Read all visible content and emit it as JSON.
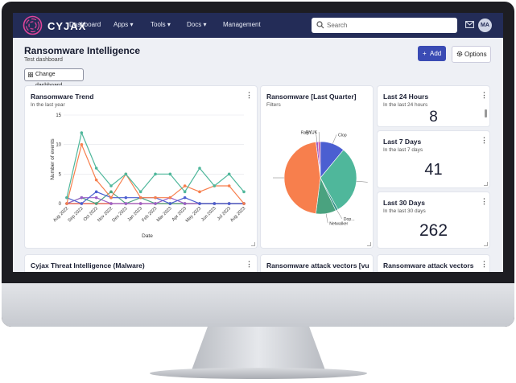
{
  "nav": {
    "brand": "CYJAX",
    "items": [
      {
        "label": "Dashboard"
      },
      {
        "label": "Apps ▾"
      },
      {
        "label": "Tools ▾"
      },
      {
        "label": "Docs ▾"
      },
      {
        "label": "Management"
      }
    ],
    "search_placeholder": "Search",
    "avatar_initials": "MA"
  },
  "page": {
    "title": "Ransomware Intelligence",
    "subtitle": "Test dashboard",
    "change_dashboard_label": "Change dashboard",
    "add_label": "Add",
    "options_label": "Options"
  },
  "cards": {
    "trend": {
      "title": "Ransomware Trend",
      "subtitle": "In the last year"
    },
    "quarter": {
      "title": "Ransomware [Last Quarter]",
      "subtitle": "Filters"
    },
    "h24": {
      "title": "Last 24 Hours",
      "subtitle": "In the last 24 hours",
      "value": "8"
    },
    "d7": {
      "title": "Last 7 Days",
      "subtitle": "In the last 7 days",
      "value": "41"
    },
    "d30": {
      "title": "Last 30 Days",
      "subtitle": "In the last 30 days",
      "value": "262"
    },
    "malware": {
      "title": "Cyjax Threat Intelligence (Malware)"
    },
    "vectors1": {
      "title": "Ransomware attack vectors [vu"
    },
    "vectors2": {
      "title": "Ransomware attack vectors"
    }
  },
  "colors": {
    "nav": "#232c57",
    "accent": "#3a4bb4",
    "teal": "#4fb79b",
    "orange": "#f77f4d",
    "blue": "#4b5fd1",
    "green": "#4aa27f",
    "purple": "#9b5fc8",
    "red": "#dd4b39"
  },
  "chart_data": [
    {
      "type": "line",
      "title": "Ransomware Trend",
      "xlabel": "Date",
      "ylabel": "Number of events",
      "x": [
        "Aug 2022",
        "Sep 2022",
        "Oct 2022",
        "Nov 2022",
        "Dec 2022",
        "Jan 2023",
        "Feb 2023",
        "Mar 2023",
        "Apr 2023",
        "May 2023",
        "Jun 2023",
        "Jul 2023",
        "Aug 2023"
      ],
      "yticks": [
        0,
        5,
        10,
        15
      ],
      "ylim": [
        0,
        15
      ],
      "grid": true,
      "series": [
        {
          "color": "#4fb79b",
          "values": [
            1,
            12,
            6,
            3,
            5,
            2,
            5,
            5,
            2,
            6,
            3,
            5,
            2
          ]
        },
        {
          "color": "#f77f4d",
          "values": [
            0,
            10,
            4,
            1,
            5,
            1,
            1,
            1,
            3,
            2,
            3,
            3,
            0
          ]
        },
        {
          "color": "#4b5fd1",
          "values": [
            1,
            0,
            2,
            1,
            1,
            1,
            1,
            0,
            1,
            0,
            0,
            0,
            0
          ]
        },
        {
          "color": "#9b5fc8",
          "values": [
            0,
            1,
            1,
            0,
            0,
            0,
            0,
            1,
            0,
            0,
            0,
            0,
            0
          ]
        },
        {
          "color": "#4aa27f",
          "values": [
            0,
            1,
            0,
            2,
            0,
            1,
            0,
            0,
            0,
            0,
            0,
            0,
            0
          ]
        },
        {
          "color": "#dd4b39",
          "values": [
            0,
            0,
            0,
            0,
            0,
            0,
            0,
            0,
            0,
            0,
            0,
            0,
            0
          ]
        }
      ]
    },
    {
      "type": "pie",
      "title": "Ransomware [Last Quarter]",
      "slices": [
        {
          "label": "Ragn...",
          "value": 1,
          "color": "#9b5fc8"
        },
        {
          "label": "RYUK",
          "value": 1,
          "color": "#c94b9c"
        },
        {
          "label": "Clop",
          "value": 11,
          "color": "#4b5fd1"
        },
        {
          "label": "",
          "value": 31,
          "color": "#4fb79b"
        },
        {
          "label": "Dop...",
          "value": 1,
          "color": "#2f8f86"
        },
        {
          "label": "Netwalker",
          "value": 9,
          "color": "#4aa27f"
        },
        {
          "label": "",
          "value": 46,
          "color": "#f77f4d"
        }
      ]
    }
  ]
}
